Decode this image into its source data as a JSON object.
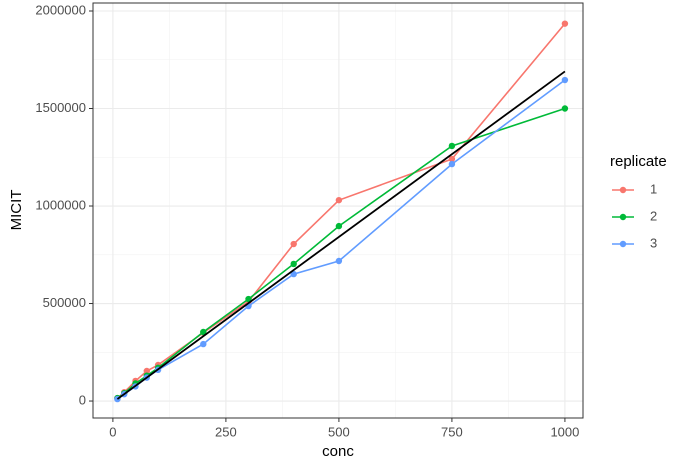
{
  "chart_data": {
    "type": "line",
    "x_label": "conc",
    "y_label": "MICIT",
    "x": [
      10,
      25,
      50,
      75,
      100,
      200,
      300,
      400,
      500,
      750,
      1000
    ],
    "series": [
      {
        "name": "1",
        "color": "#f8766d",
        "values": [
          15000,
          45000,
          103000,
          154000,
          185000,
          350000,
          510000,
          805000,
          1030000,
          1241000,
          1935000
        ]
      },
      {
        "name": "2",
        "color": "#00ba38",
        "values": [
          15000,
          40000,
          90000,
          130000,
          170000,
          354000,
          523000,
          703000,
          897000,
          1308000,
          1500000
        ]
      },
      {
        "name": "3",
        "color": "#619cff",
        "values": [
          10000,
          35000,
          75000,
          120000,
          160000,
          292000,
          487000,
          651000,
          718000,
          1215000,
          1646000
        ]
      }
    ],
    "fit_line": {
      "color": "#000000",
      "x": [
        10,
        1000
      ],
      "values": [
        10000,
        1690000
      ]
    },
    "legend_title": "replicate",
    "legend": "right",
    "xlim": [
      -44,
      1040
    ],
    "ylim": [
      -87000,
      2041000
    ],
    "xticks": [
      0,
      250,
      500,
      750,
      1000
    ],
    "yticks": [
      0,
      500000,
      1000000,
      1500000,
      2000000
    ],
    "grid": true
  }
}
